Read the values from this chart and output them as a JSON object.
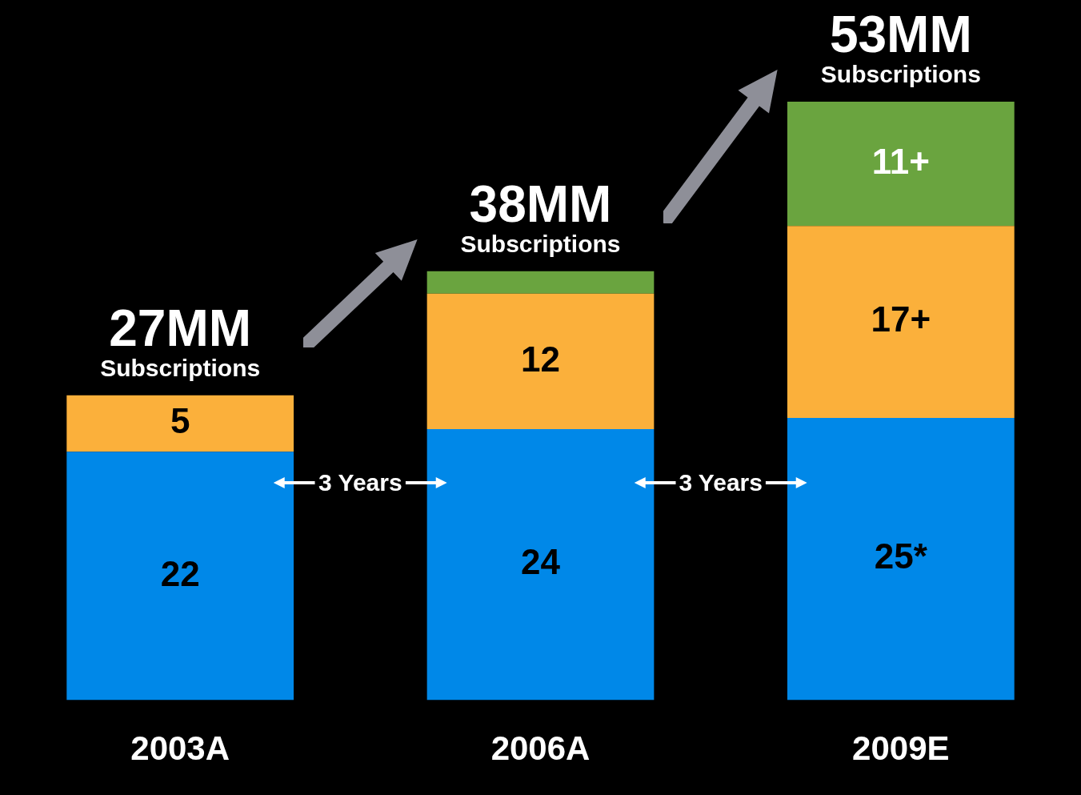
{
  "chart_data": {
    "type": "bar",
    "stacked": true,
    "categories": [
      "2003A",
      "2006A",
      "2009E"
    ],
    "series": [
      {
        "color": "#0088e8",
        "values": [
          22,
          24,
          25
        ],
        "value_labels": [
          "22",
          "24",
          "25*"
        ]
      },
      {
        "color": "#fbb03b",
        "values": [
          5,
          12,
          17
        ],
        "value_labels": [
          "5",
          "12",
          "17+"
        ]
      },
      {
        "color": "#6aa43f",
        "values": [
          null,
          2,
          11
        ],
        "value_labels": [
          null,
          null,
          "11+"
        ]
      }
    ],
    "totals": [
      "27MM\nSubscriptions",
      "38MM\nSubscriptions",
      "53MM\nSubscriptions"
    ],
    "annotations": [
      "3 Years",
      "3 Years"
    ],
    "legend": false
  }
}
